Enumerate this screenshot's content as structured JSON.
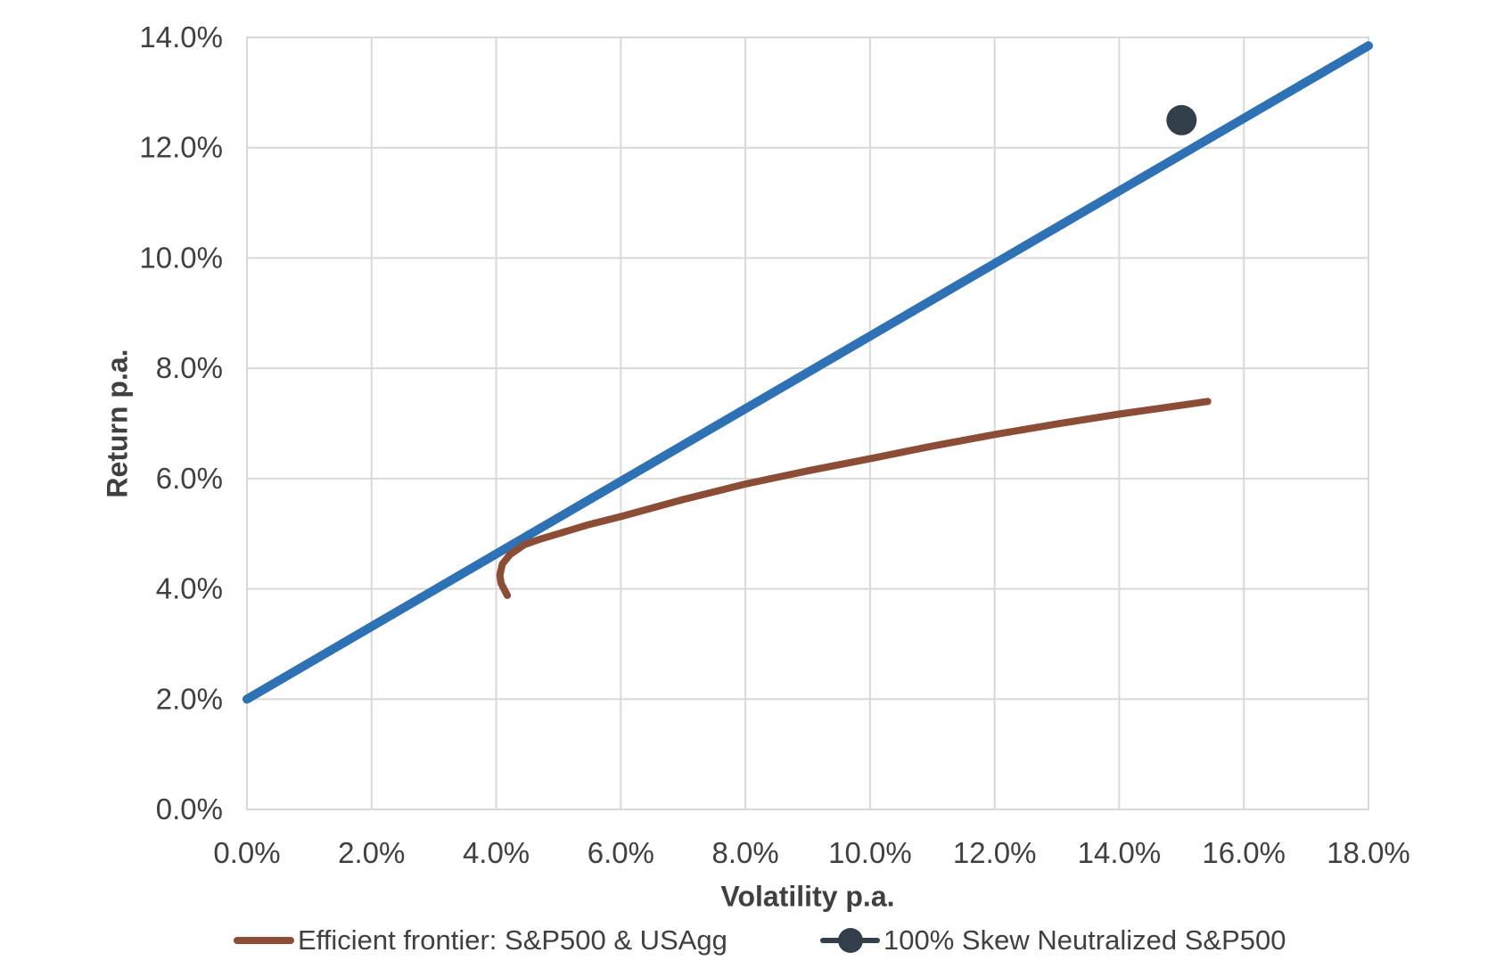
{
  "chart_data": {
    "type": "line",
    "title": "",
    "xlabel": "Volatility p.a.",
    "ylabel": "Return p.a.",
    "xlim": [
      0,
      18
    ],
    "ylim": [
      0,
      14
    ],
    "x_tick_values": [
      0,
      2,
      4,
      6,
      8,
      10,
      12,
      14,
      16,
      18
    ],
    "y_tick_values": [
      0,
      2,
      4,
      6,
      8,
      10,
      12,
      14
    ],
    "tick_format": "one-decimal-percent",
    "grid": true,
    "legend_position": "bottom",
    "series": [
      {
        "id": "reference-line",
        "name": "",
        "type": "line",
        "color": "#2F71B5",
        "stroke_width": 10,
        "show_in_legend": false,
        "points": [
          [
            0.0,
            2.0
          ],
          [
            18.0,
            13.85
          ]
        ]
      },
      {
        "id": "efficient-frontier",
        "name": "Efficient frontier: S&P500 & USAgg",
        "type": "line",
        "color": "#8B4D35",
        "stroke_width": 8,
        "show_in_legend": true,
        "legend_marker": "line",
        "points": [
          [
            4.18,
            3.88
          ],
          [
            4.08,
            4.1
          ],
          [
            4.06,
            4.25
          ],
          [
            4.1,
            4.45
          ],
          [
            4.22,
            4.62
          ],
          [
            4.45,
            4.8
          ],
          [
            4.7,
            4.9
          ],
          [
            5.0,
            5.0
          ],
          [
            5.5,
            5.17
          ],
          [
            6.0,
            5.31
          ],
          [
            7.0,
            5.62
          ],
          [
            8.0,
            5.9
          ],
          [
            9.0,
            6.14
          ],
          [
            10.0,
            6.36
          ],
          [
            11.0,
            6.59
          ],
          [
            12.0,
            6.8
          ],
          [
            13.0,
            6.99
          ],
          [
            14.0,
            7.17
          ],
          [
            15.0,
            7.33
          ],
          [
            15.42,
            7.4
          ]
        ]
      },
      {
        "id": "skew-neutralized",
        "name": "100% Skew Neutralized S&P500",
        "type": "scatter",
        "color": "#333E4B",
        "marker_radius": 17,
        "show_in_legend": true,
        "legend_marker": "line-dot",
        "points": [
          [
            15.0,
            12.5
          ]
        ]
      }
    ]
  },
  "colors": {
    "text": "#404040",
    "grid": "#D9D9D9",
    "background": "#FFFFFF"
  }
}
